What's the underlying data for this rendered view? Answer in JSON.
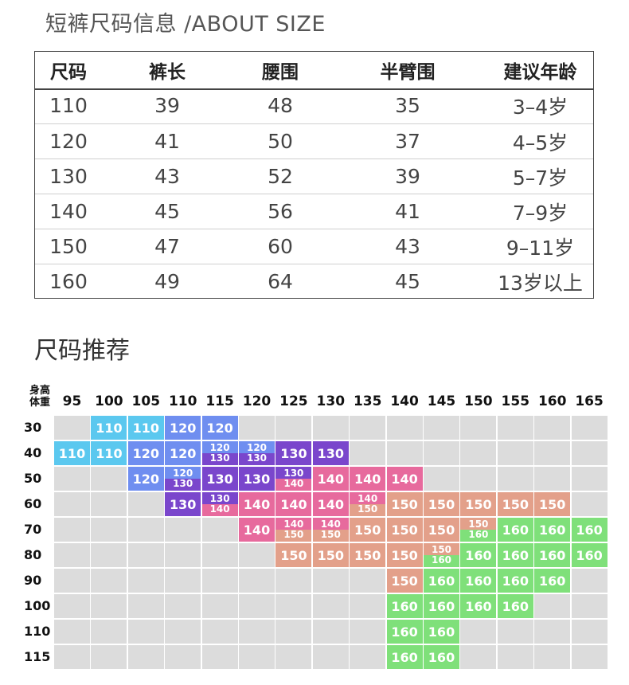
{
  "title": "短裤尺码信息 /ABOUT SIZE",
  "size_table": {
    "headers": [
      "尺码",
      "裤长",
      "腰围",
      "半臂围",
      "建议年龄"
    ],
    "rows": [
      [
        "110",
        "39",
        "48",
        "35",
        "3–4岁"
      ],
      [
        "120",
        "41",
        "50",
        "37",
        "4–5岁"
      ],
      [
        "130",
        "43",
        "52",
        "39",
        "5–7岁"
      ],
      [
        "140",
        "45",
        "56",
        "41",
        "7–9岁"
      ],
      [
        "150",
        "47",
        "60",
        "43",
        "9–11岁"
      ],
      [
        "160",
        "49",
        "64",
        "45",
        "13岁以上"
      ]
    ]
  },
  "recommend": {
    "title": "尺码推荐",
    "corner_top": "身高",
    "corner_bottom": "体重",
    "heights": [
      "95",
      "100",
      "105",
      "110",
      "115",
      "120",
      "125",
      "130",
      "135",
      "140",
      "145",
      "150",
      "155",
      "160",
      "165"
    ],
    "weights": [
      "30",
      "40",
      "50",
      "60",
      "70",
      "80",
      "90",
      "100",
      "110",
      "115"
    ],
    "colors": {
      "110": "#5bc8ef",
      "120": "#6f8ef0",
      "130": "#7a46cc",
      "140": "#e76a9d",
      "150": "#e3a08a",
      "160": "#7fe07a",
      "empty": "#dcdcdc"
    },
    "grid": [
      [
        "",
        "110",
        "110",
        "120",
        "120",
        "",
        "",
        "",
        "",
        "",
        "",
        "",
        "",
        "",
        ""
      ],
      [
        "110",
        "110",
        "120",
        "120",
        "120/130",
        "120/130",
        "130",
        "130",
        "",
        "",
        "",
        "",
        "",
        "",
        ""
      ],
      [
        "",
        "",
        "120",
        "120/130",
        "130",
        "130",
        "130/140",
        "140",
        "140",
        "140",
        "",
        "",
        "",
        "",
        ""
      ],
      [
        "",
        "",
        "",
        "130",
        "130/140",
        "140",
        "140",
        "140",
        "140/150",
        "150",
        "150",
        "150",
        "150",
        "150",
        ""
      ],
      [
        "",
        "",
        "",
        "",
        "",
        "140",
        "140/150",
        "140/150",
        "150",
        "150",
        "150",
        "150/160",
        "160",
        "160",
        "160"
      ],
      [
        "",
        "",
        "",
        "",
        "",
        "",
        "150",
        "150",
        "150",
        "150",
        "150/160",
        "160",
        "160",
        "160",
        "160"
      ],
      [
        "",
        "",
        "",
        "",
        "",
        "",
        "",
        "",
        "",
        "150",
        "160",
        "160",
        "160",
        "160",
        ""
      ],
      [
        "",
        "",
        "",
        "",
        "",
        "",
        "",
        "",
        "",
        "160",
        "160",
        "160",
        "160",
        "",
        ""
      ],
      [
        "",
        "",
        "",
        "",
        "",
        "",
        "",
        "",
        "",
        "160",
        "160",
        "",
        "",
        "",
        ""
      ],
      [
        "",
        "",
        "",
        "",
        "",
        "",
        "",
        "",
        "",
        "160",
        "160",
        "",
        "",
        "",
        ""
      ]
    ]
  }
}
